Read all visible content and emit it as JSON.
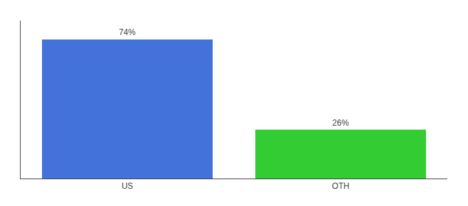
{
  "chart_data": {
    "type": "bar",
    "categories": [
      "US",
      "OTH"
    ],
    "values": [
      74,
      26
    ],
    "value_labels": [
      "74%",
      "26%"
    ],
    "data_labels": true,
    "colors": [
      "#4472db",
      "#33cc33"
    ],
    "ylim": [
      0,
      84
    ],
    "grid": false,
    "tick_labels": "x"
  }
}
